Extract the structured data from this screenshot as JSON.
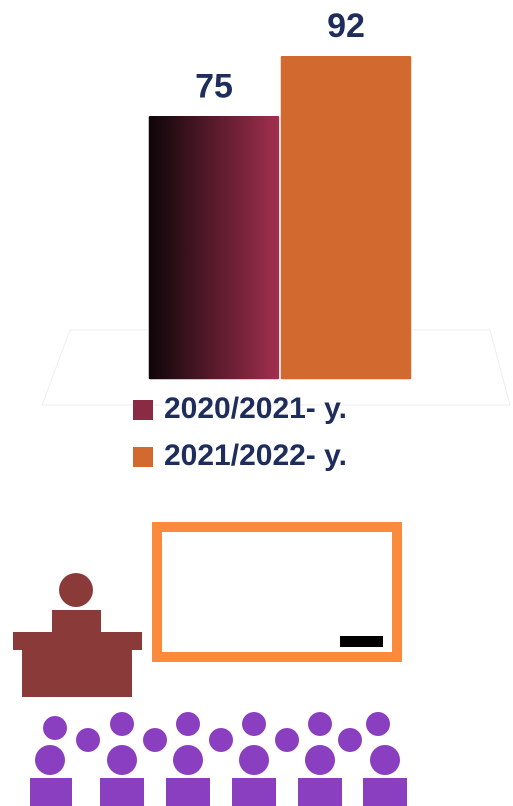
{
  "chart_data": {
    "type": "bar",
    "categories": [
      null
    ],
    "series": [
      {
        "name": "2020/2021- y.",
        "color": "#8b2a45",
        "values": [
          75
        ]
      },
      {
        "name": "2021/2022- y.",
        "color": "#d2692e",
        "values": [
          92
        ]
      }
    ],
    "ylim": [
      0,
      100
    ]
  }
}
